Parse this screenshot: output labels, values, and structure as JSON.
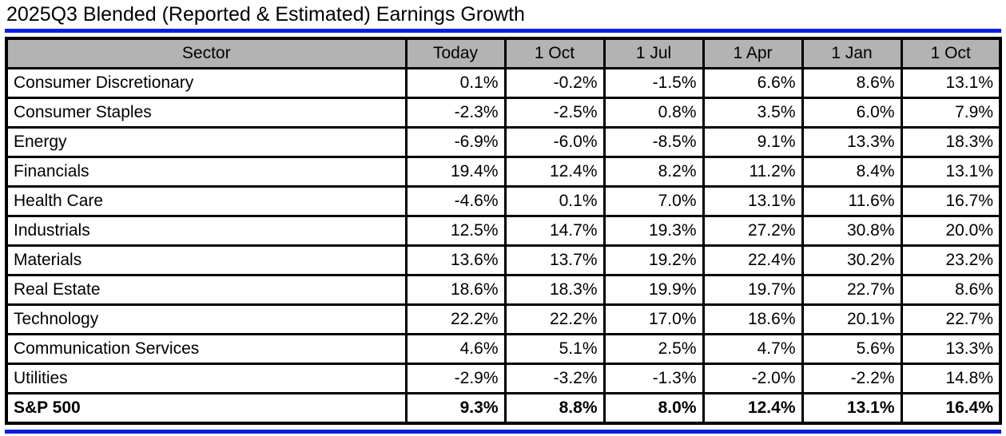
{
  "title": "2025Q3 Blended (Reported & Estimated) Earnings Growth",
  "colors": {
    "accent_blue": "#0a1ee1",
    "header_gray": "#b3b3b3",
    "border_black": "#000000"
  },
  "chart_data": {
    "type": "table",
    "title": "2025Q3 Blended (Reported & Estimated) Earnings Growth",
    "unit": "%",
    "columns": [
      "Sector",
      "Today",
      "1 Oct",
      "1 Jul",
      "1 Apr",
      "1 Jan",
      "1 Oct"
    ],
    "rows": [
      {
        "sector": "Consumer Discretionary",
        "values": [
          0.1,
          -0.2,
          -1.5,
          6.6,
          8.6,
          13.1
        ],
        "bold": false
      },
      {
        "sector": "Consumer Staples",
        "values": [
          -2.3,
          -2.5,
          0.8,
          3.5,
          6.0,
          7.9
        ],
        "bold": false
      },
      {
        "sector": "Energy",
        "values": [
          -6.9,
          -6.0,
          -8.5,
          9.1,
          13.3,
          18.3
        ],
        "bold": false
      },
      {
        "sector": "Financials",
        "values": [
          19.4,
          12.4,
          8.2,
          11.2,
          8.4,
          13.1
        ],
        "bold": false
      },
      {
        "sector": "Health Care",
        "values": [
          -4.6,
          0.1,
          7.0,
          13.1,
          11.6,
          16.7
        ],
        "bold": false
      },
      {
        "sector": "Industrials",
        "values": [
          12.5,
          14.7,
          19.3,
          27.2,
          30.8,
          20.0
        ],
        "bold": false
      },
      {
        "sector": "Materials",
        "values": [
          13.6,
          13.7,
          19.2,
          22.4,
          30.2,
          23.2
        ],
        "bold": false
      },
      {
        "sector": "Real Estate",
        "values": [
          18.6,
          18.3,
          19.9,
          19.7,
          22.7,
          8.6
        ],
        "bold": false
      },
      {
        "sector": "Technology",
        "values": [
          22.2,
          22.2,
          17.0,
          18.6,
          20.1,
          22.7
        ],
        "bold": false
      },
      {
        "sector": "Communication Services",
        "values": [
          4.6,
          5.1,
          2.5,
          4.7,
          5.6,
          13.3
        ],
        "bold": false
      },
      {
        "sector": "Utilities",
        "values": [
          -2.9,
          -3.2,
          -1.3,
          -2.0,
          -2.2,
          14.8
        ],
        "bold": false
      },
      {
        "sector": "S&P 500",
        "values": [
          9.3,
          8.8,
          8.0,
          12.4,
          13.1,
          16.4
        ],
        "bold": true
      }
    ]
  }
}
